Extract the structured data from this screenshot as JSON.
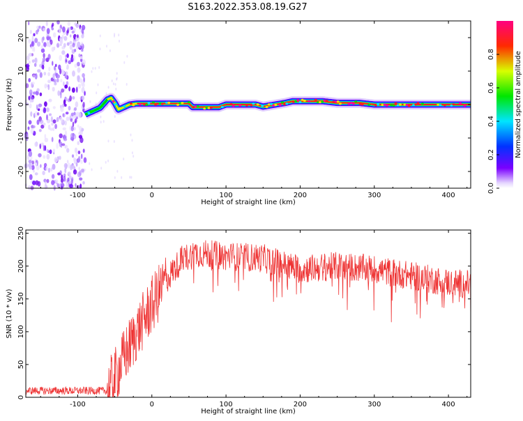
{
  "title": "S163.2022.353.08.19.G27",
  "chart_data": [
    {
      "type": "heatmap",
      "xlabel": "Height of straight line (km)",
      "ylabel": "Frequency (Hz)",
      "xlim": [
        -170,
        430
      ],
      "ylim": [
        -25,
        25
      ],
      "xticks": [
        -100,
        0,
        100,
        200,
        300,
        400
      ],
      "yticks": [
        -20,
        -10,
        0,
        10,
        20
      ],
      "colorbar": {
        "label": "Normalized spectral amplitude",
        "range": [
          0,
          1
        ],
        "ticks": [
          "0.0",
          "0.2",
          "0.4",
          "0.6",
          "0.8"
        ],
        "colormap": "rainbow (purple → blue → cyan → green → yellow → red → magenta)"
      },
      "trace_frequency": {
        "x": [
          -90,
          -80,
          -70,
          -60,
          -55,
          -50,
          -45,
          -40,
          -30,
          -20,
          0,
          50,
          55,
          90,
          100,
          140,
          150,
          180,
          190,
          200,
          230,
          250,
          280,
          300,
          330,
          430
        ],
        "y": [
          -3,
          -2,
          -1,
          1.5,
          2,
          0.5,
          -1.5,
          -1,
          0,
          0.3,
          0.3,
          0.3,
          -0.8,
          -0.8,
          0,
          0,
          -0.6,
          0.5,
          1,
          1,
          1,
          0.5,
          0.5,
          0,
          0,
          0
        ]
      },
      "noise_region": {
        "x_from": -170,
        "x_to": -90,
        "y_from": -25,
        "y_to": 25
      }
    },
    {
      "type": "line",
      "xlabel": "Height of straight line (km)",
      "ylabel": "SNR (10 * v/v)",
      "xlim": [
        -170,
        430
      ],
      "ylim": [
        0,
        255
      ],
      "xticks": [
        -100,
        0,
        100,
        200,
        300,
        400
      ],
      "yticks": [
        0,
        50,
        100,
        150,
        200,
        250
      ],
      "series_color": "#ee3333",
      "envelope_mean": {
        "x": [
          -170,
          -60,
          -50,
          -40,
          -20,
          0,
          20,
          40,
          60,
          100,
          150,
          170,
          200,
          250,
          300,
          350,
          400,
          430
        ],
        "y": [
          10,
          10,
          30,
          55,
          100,
          140,
          180,
          210,
          220,
          215,
          212,
          205,
          195,
          200,
          195,
          185,
          175,
          172
        ]
      }
    }
  ]
}
